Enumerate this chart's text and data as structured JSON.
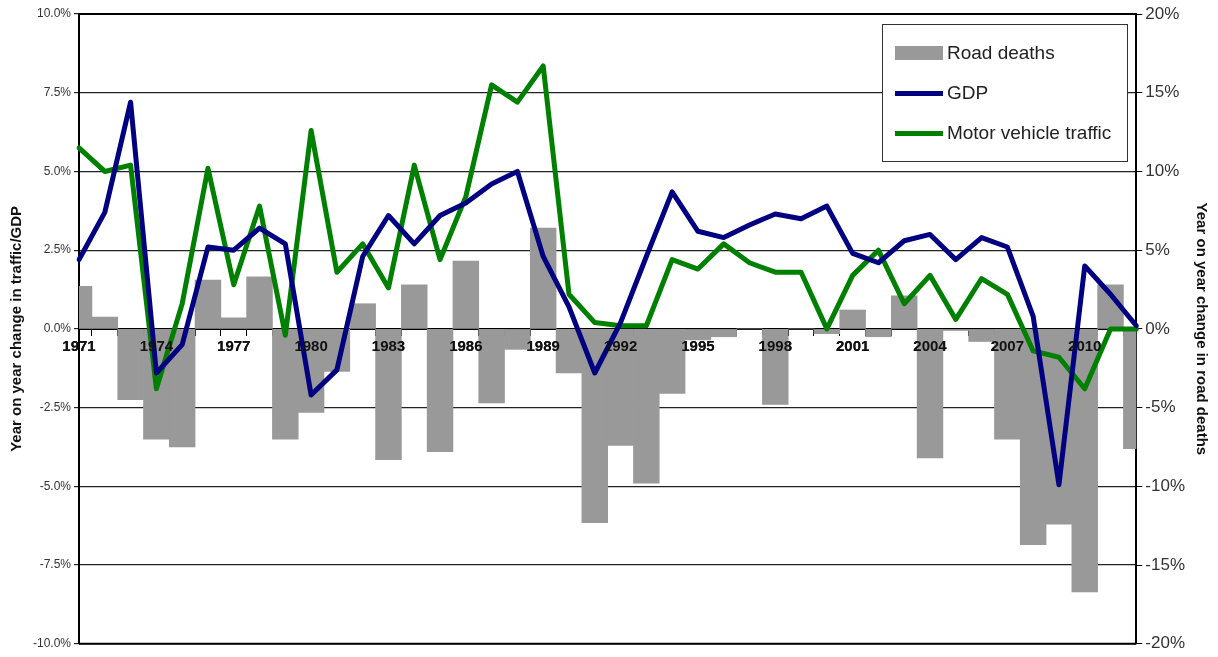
{
  "chart_data": {
    "type": "line",
    "ylabel": "Year on year change in traffic/GDP",
    "y2label": "Year on year change in road deaths",
    "categories": [
      "1971",
      null,
      null,
      "1974",
      null,
      null,
      "1977",
      null,
      null,
      "1980",
      null,
      null,
      "1983",
      null,
      null,
      "1986",
      null,
      null,
      "1989",
      null,
      null,
      "1992",
      null,
      null,
      "1995",
      null,
      null,
      "1998",
      null,
      null,
      "2001",
      null,
      null,
      "2004",
      null,
      null,
      "2007",
      null,
      null,
      "2010",
      null,
      null
    ],
    "series": [
      {
        "name": "Road deaths",
        "type": "bar",
        "axis": "y2",
        "color": "#999999",
        "values": [
          2.7,
          0.75,
          -4.5,
          -7.0,
          -7.5,
          3.1,
          0.7,
          3.3,
          -7.0,
          -5.3,
          -2.7,
          1.6,
          -8.3,
          2.8,
          -7.8,
          4.3,
          -4.7,
          -1.3,
          6.4,
          -2.8,
          -12.3,
          -7.4,
          -9.8,
          -4.1,
          -0.7,
          -0.5,
          0,
          -4.8,
          0,
          -0.3,
          1.2,
          -0.5,
          2.1,
          -8.2,
          -0.1,
          -0.8,
          -7.0,
          -13.7,
          -12.4,
          -16.7,
          2.8,
          -7.6
        ]
      },
      {
        "name": "GDP",
        "color": "#000080",
        "values": [
          2.2,
          3.7,
          7.2,
          -1.4,
          -0.5,
          2.6,
          2.5,
          3.2,
          2.7,
          -2.1,
          -1.3,
          2.3,
          3.6,
          2.7,
          3.6,
          4.0,
          4.6,
          5.0,
          2.3,
          0.7,
          -1.4,
          0.2,
          2.3,
          4.35,
          3.1,
          2.9,
          3.3,
          3.65,
          3.5,
          3.9,
          2.4,
          2.1,
          2.8,
          3.0,
          2.2,
          2.9,
          2.6,
          0.4,
          -4.95,
          2.0,
          1.1,
          0.1
        ]
      },
      {
        "name": "Motor vehicle traffic",
        "color": "#008000",
        "values": [
          5.75,
          5.0,
          5.2,
          -1.9,
          0.8,
          5.1,
          1.4,
          3.9,
          -0.2,
          6.3,
          1.8,
          2.7,
          1.3,
          5.2,
          2.2,
          4.2,
          7.75,
          7.2,
          8.35,
          1.1,
          0.2,
          0.1,
          0.1,
          2.2,
          1.9,
          2.7,
          2.1,
          1.8,
          1.8,
          0.0,
          1.7,
          2.5,
          0.8,
          1.7,
          0.3,
          1.6,
          1.1,
          -0.7,
          -0.9,
          -1.9,
          0,
          0
        ]
      }
    ],
    "ylim": [
      -10,
      10
    ],
    "yticks": [
      {
        "value": -10,
        "label": "-10.0%"
      },
      {
        "value": -7.5,
        "label": "-7.5%"
      },
      {
        "value": -5,
        "label": "-5.0%"
      },
      {
        "value": -2.5,
        "label": "-2.5%"
      },
      {
        "value": 0,
        "label": "0.0%"
      },
      {
        "value": 2.5,
        "label": "2.5%"
      },
      {
        "value": 5,
        "label": "5.0%"
      },
      {
        "value": 7.5,
        "label": "7.5%"
      },
      {
        "value": 10,
        "label": "10.0%"
      }
    ],
    "y2lim": [
      -20,
      20
    ],
    "y2ticks": [
      {
        "value": -20,
        "label": "-20%"
      },
      {
        "value": -15,
        "label": "-15%"
      },
      {
        "value": -10,
        "label": "-10%"
      },
      {
        "value": -5,
        "label": "-5%"
      },
      {
        "value": 0,
        "label": "0%"
      },
      {
        "value": 5,
        "label": "5%"
      },
      {
        "value": 10,
        "label": "10%"
      },
      {
        "value": 15,
        "label": "15%"
      },
      {
        "value": 20,
        "label": "20%"
      }
    ],
    "grid": "y",
    "legend": "top right",
    "marker": "none"
  }
}
